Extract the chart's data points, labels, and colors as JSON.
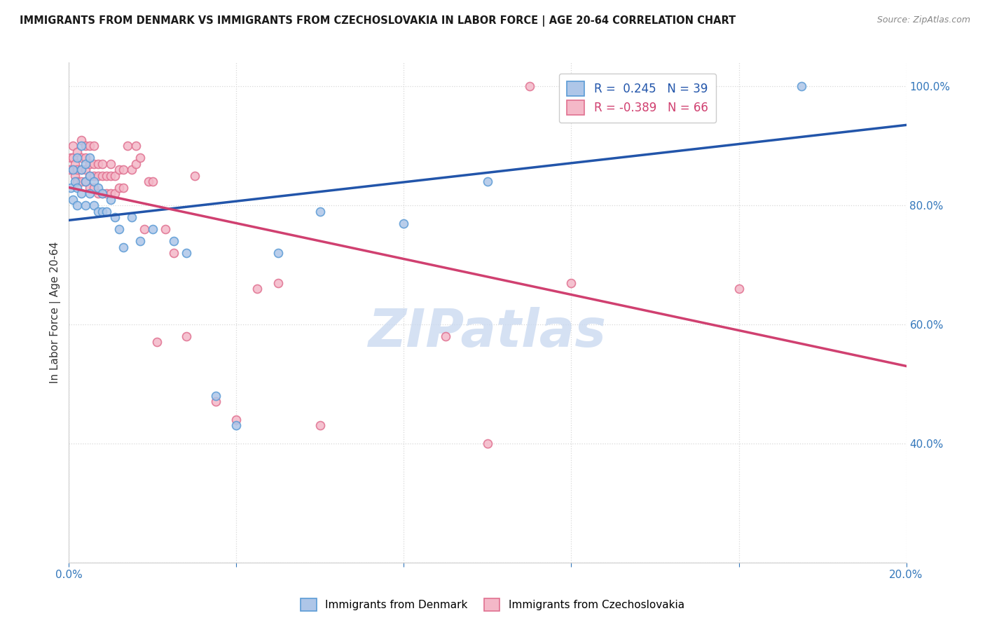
{
  "title": "IMMIGRANTS FROM DENMARK VS IMMIGRANTS FROM CZECHOSLOVAKIA IN LABOR FORCE | AGE 20-64 CORRELATION CHART",
  "source": "Source: ZipAtlas.com",
  "ylabel": "In Labor Force | Age 20-64",
  "xlim": [
    0.0,
    0.2
  ],
  "ylim": [
    0.2,
    1.04
  ],
  "denmark_R": 0.245,
  "denmark_N": 39,
  "czech_R": -0.389,
  "czech_N": 66,
  "denmark_color": "#aec6e8",
  "denmark_edge": "#5b9bd5",
  "czech_color": "#f4b8c8",
  "czech_edge": "#e07090",
  "denmark_line_color": "#2255aa",
  "czech_line_color": "#d04070",
  "watermark": "ZIPatlas",
  "watermark_color": "#c8d8f0",
  "grid_color": "#d8d8d8",
  "bg_color": "#ffffff",
  "marker_size": 75,
  "denmark_line_y0": 0.775,
  "denmark_line_y1": 0.935,
  "czech_line_y0": 0.83,
  "czech_line_y1": 0.53,
  "denmark_x": [
    0.0005,
    0.001,
    0.001,
    0.0015,
    0.002,
    0.002,
    0.002,
    0.003,
    0.003,
    0.003,
    0.004,
    0.004,
    0.004,
    0.005,
    0.005,
    0.005,
    0.006,
    0.006,
    0.007,
    0.007,
    0.008,
    0.008,
    0.009,
    0.01,
    0.011,
    0.012,
    0.013,
    0.015,
    0.017,
    0.02,
    0.025,
    0.028,
    0.035,
    0.04,
    0.05,
    0.06,
    0.08,
    0.1,
    0.175
  ],
  "denmark_y": [
    0.83,
    0.81,
    0.86,
    0.84,
    0.8,
    0.83,
    0.88,
    0.82,
    0.86,
    0.9,
    0.8,
    0.84,
    0.87,
    0.82,
    0.85,
    0.88,
    0.8,
    0.84,
    0.79,
    0.83,
    0.79,
    0.82,
    0.79,
    0.81,
    0.78,
    0.76,
    0.73,
    0.78,
    0.74,
    0.76,
    0.74,
    0.72,
    0.48,
    0.43,
    0.72,
    0.79,
    0.77,
    0.84,
    1.0
  ],
  "czech_x": [
    0.0003,
    0.0005,
    0.001,
    0.001,
    0.001,
    0.0015,
    0.0015,
    0.002,
    0.002,
    0.002,
    0.003,
    0.003,
    0.003,
    0.003,
    0.004,
    0.004,
    0.004,
    0.004,
    0.005,
    0.005,
    0.005,
    0.005,
    0.006,
    0.006,
    0.006,
    0.006,
    0.007,
    0.007,
    0.007,
    0.008,
    0.008,
    0.008,
    0.009,
    0.009,
    0.01,
    0.01,
    0.01,
    0.011,
    0.011,
    0.012,
    0.012,
    0.013,
    0.013,
    0.014,
    0.015,
    0.016,
    0.016,
    0.017,
    0.018,
    0.019,
    0.02,
    0.021,
    0.023,
    0.025,
    0.028,
    0.03,
    0.035,
    0.04,
    0.045,
    0.05,
    0.06,
    0.09,
    0.1,
    0.11,
    0.12,
    0.16
  ],
  "czech_y": [
    0.86,
    0.88,
    0.86,
    0.88,
    0.9,
    0.85,
    0.87,
    0.84,
    0.86,
    0.89,
    0.84,
    0.86,
    0.88,
    0.91,
    0.84,
    0.86,
    0.88,
    0.9,
    0.83,
    0.85,
    0.87,
    0.9,
    0.83,
    0.85,
    0.87,
    0.9,
    0.82,
    0.85,
    0.87,
    0.82,
    0.85,
    0.87,
    0.82,
    0.85,
    0.82,
    0.85,
    0.87,
    0.82,
    0.85,
    0.83,
    0.86,
    0.83,
    0.86,
    0.9,
    0.86,
    0.87,
    0.9,
    0.88,
    0.76,
    0.84,
    0.84,
    0.57,
    0.76,
    0.72,
    0.58,
    0.85,
    0.47,
    0.44,
    0.66,
    0.67,
    0.43,
    0.58,
    0.4,
    1.0,
    0.67,
    0.66
  ],
  "xtick_vals": [
    0.0,
    0.04,
    0.08,
    0.12,
    0.16,
    0.2
  ],
  "ytick_vals": [
    0.4,
    0.6,
    0.8,
    1.0
  ]
}
